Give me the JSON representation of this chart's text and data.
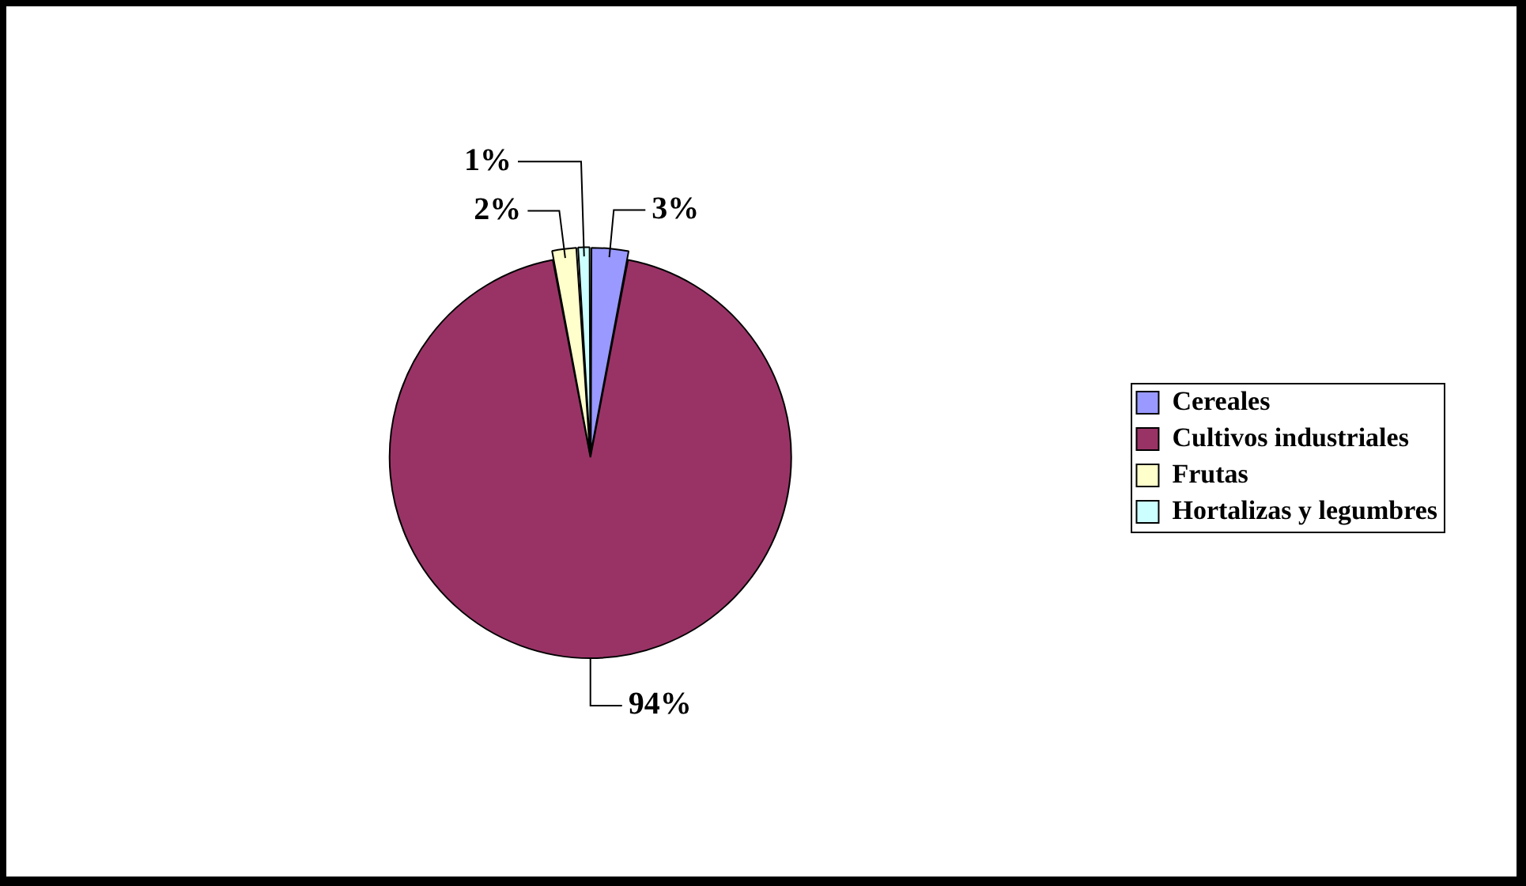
{
  "chart_data": {
    "type": "pie",
    "categories": [
      "Cereales",
      "Cultivos industriales",
      "Frutas",
      "Hortalizas y legumbres"
    ],
    "values": [
      3,
      94,
      2,
      1
    ],
    "colors": [
      "#9999ff",
      "#993366",
      "#ffffcc",
      "#ccffff"
    ],
    "value_labels": [
      "3%",
      "94%",
      "2%",
      "1%"
    ],
    "legend": "right"
  }
}
